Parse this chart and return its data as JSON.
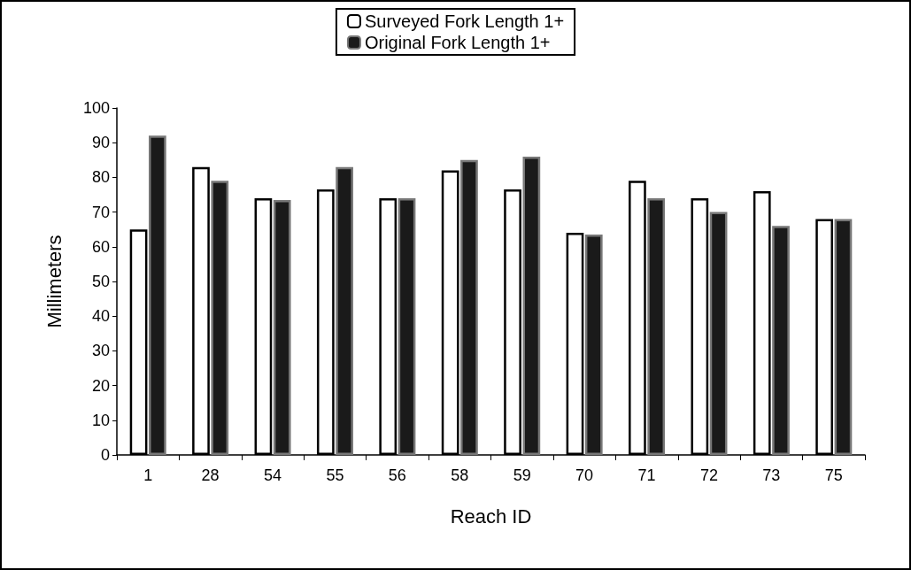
{
  "chart_data": {
    "type": "bar",
    "xlabel": "Reach ID",
    "ylabel": "Millimeters",
    "categories": [
      "1",
      "28",
      "54",
      "55",
      "56",
      "58",
      "59",
      "70",
      "71",
      "72",
      "73",
      "75"
    ],
    "series": [
      {
        "name": "Surveyed Fork Length 1+",
        "color": "#ffffff",
        "values": [
          65,
          83,
          74,
          76.5,
          74,
          82,
          76.5,
          64,
          79,
          74,
          76,
          68
        ]
      },
      {
        "name": "Original Fork Length 1+",
        "color": "#1a1a1a",
        "values": [
          92,
          79,
          73.5,
          83,
          74,
          85,
          86,
          63.5,
          74,
          70,
          66,
          68
        ]
      }
    ],
    "ylim": [
      0,
      100
    ],
    "yticks": [
      0,
      10,
      20,
      30,
      40,
      50,
      60,
      70,
      80,
      90,
      100
    ],
    "grid": false,
    "legend": "top"
  }
}
